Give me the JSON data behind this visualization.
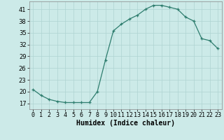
{
  "x": [
    0,
    1,
    2,
    3,
    4,
    5,
    6,
    7,
    8,
    9,
    10,
    11,
    12,
    13,
    14,
    15,
    16,
    17,
    18,
    19,
    20,
    21,
    22,
    23
  ],
  "y": [
    20.5,
    19.0,
    18.0,
    17.5,
    17.2,
    17.2,
    17.2,
    17.2,
    20.0,
    28.0,
    35.5,
    37.2,
    38.5,
    39.5,
    41.0,
    42.0,
    42.0,
    41.5,
    41.0,
    39.0,
    38.0,
    33.5,
    33.0,
    31.0
  ],
  "xlabel": "Humidex (Indice chaleur)",
  "xlim": [
    -0.5,
    23.5
  ],
  "ylim": [
    15.5,
    43
  ],
  "yticks": [
    17,
    20,
    23,
    26,
    29,
    32,
    35,
    38,
    41
  ],
  "xtick_labels": [
    "0",
    "1",
    "2",
    "3",
    "4",
    "5",
    "6",
    "7",
    "8",
    "9",
    "10",
    "11",
    "12",
    "13",
    "14",
    "15",
    "16",
    "17",
    "18",
    "19",
    "20",
    "21",
    "22",
    "23"
  ],
  "line_color": "#2e7d6e",
  "marker": "+",
  "bg_color": "#cceae8",
  "grid_color": "#aed4d2",
  "label_fontsize": 7,
  "tick_fontsize": 6
}
